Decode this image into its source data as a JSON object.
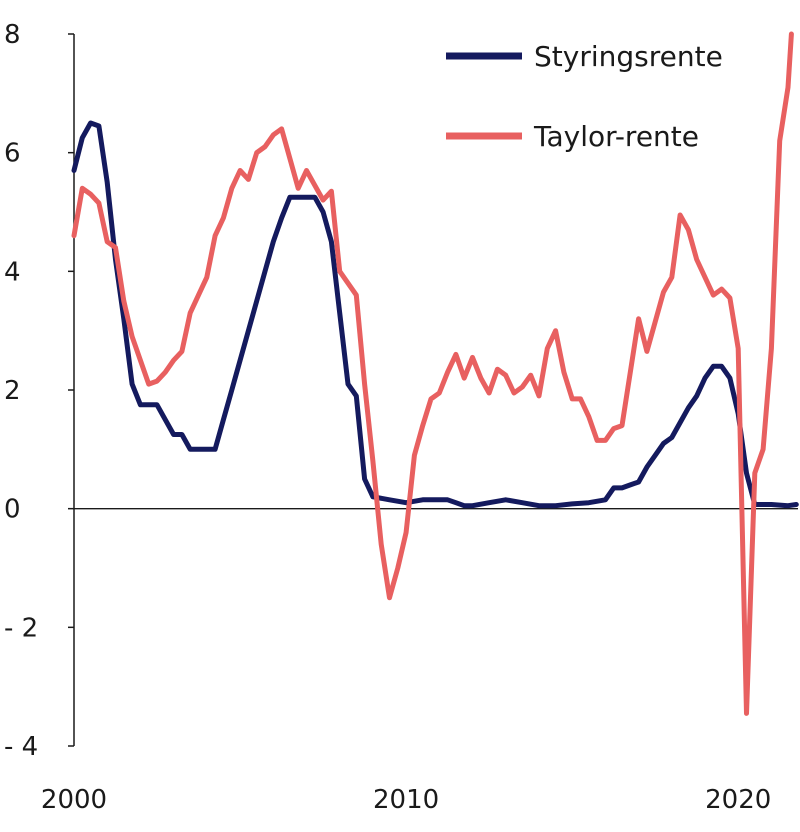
{
  "chart_data": {
    "type": "line",
    "title": "",
    "xlabel": "",
    "ylabel": "",
    "xlim": [
      2000,
      2021.8
    ],
    "ylim": [
      -4,
      8
    ],
    "x_ticks": [
      2000,
      2010,
      2020
    ],
    "x_tick_labels": [
      "2000",
      "2010",
      "2020"
    ],
    "y_ticks": [
      8,
      6,
      4,
      2,
      0,
      -2,
      -4
    ],
    "y_tick_labels": [
      "8",
      "6",
      "4",
      "2",
      "0",
      "- 2",
      "- 4"
    ],
    "grid": false,
    "zero_line": true,
    "legend_position": "top-right",
    "series": [
      {
        "name": "Styringsrente",
        "color": "#141a5e",
        "points": [
          [
            2000.0,
            5.7
          ],
          [
            2000.25,
            6.25
          ],
          [
            2000.5,
            6.5
          ],
          [
            2000.75,
            6.45
          ],
          [
            2001.0,
            5.5
          ],
          [
            2001.25,
            4.2
          ],
          [
            2001.5,
            3.2
          ],
          [
            2001.75,
            2.1
          ],
          [
            2002.0,
            1.75
          ],
          [
            2002.25,
            1.75
          ],
          [
            2002.5,
            1.75
          ],
          [
            2002.75,
            1.5
          ],
          [
            2003.0,
            1.25
          ],
          [
            2003.25,
            1.25
          ],
          [
            2003.5,
            1.0
          ],
          [
            2003.75,
            1.0
          ],
          [
            2004.0,
            1.0
          ],
          [
            2004.25,
            1.0
          ],
          [
            2004.5,
            1.5
          ],
          [
            2004.75,
            2.0
          ],
          [
            2005.0,
            2.5
          ],
          [
            2005.25,
            3.0
          ],
          [
            2005.5,
            3.5
          ],
          [
            2005.75,
            4.0
          ],
          [
            2006.0,
            4.5
          ],
          [
            2006.25,
            4.9
          ],
          [
            2006.5,
            5.25
          ],
          [
            2006.75,
            5.25
          ],
          [
            2007.0,
            5.25
          ],
          [
            2007.25,
            5.25
          ],
          [
            2007.5,
            5.0
          ],
          [
            2007.75,
            4.5
          ],
          [
            2008.0,
            3.3
          ],
          [
            2008.25,
            2.1
          ],
          [
            2008.5,
            1.9
          ],
          [
            2008.75,
            0.5
          ],
          [
            2009.0,
            0.2
          ],
          [
            2009.5,
            0.15
          ],
          [
            2010.0,
            0.1
          ],
          [
            2010.5,
            0.15
          ],
          [
            2011.0,
            0.15
          ],
          [
            2011.25,
            0.15
          ],
          [
            2011.5,
            0.1
          ],
          [
            2011.75,
            0.05
          ],
          [
            2012.0,
            0.05
          ],
          [
            2012.5,
            0.1
          ],
          [
            2013.0,
            0.15
          ],
          [
            2013.5,
            0.1
          ],
          [
            2014.0,
            0.05
          ],
          [
            2014.5,
            0.05
          ],
          [
            2015.0,
            0.08
          ],
          [
            2015.5,
            0.1
          ],
          [
            2016.0,
            0.15
          ],
          [
            2016.25,
            0.35
          ],
          [
            2016.5,
            0.35
          ],
          [
            2016.75,
            0.4
          ],
          [
            2017.0,
            0.45
          ],
          [
            2017.25,
            0.7
          ],
          [
            2017.5,
            0.9
          ],
          [
            2017.75,
            1.1
          ],
          [
            2018.0,
            1.2
          ],
          [
            2018.25,
            1.45
          ],
          [
            2018.5,
            1.7
          ],
          [
            2018.75,
            1.9
          ],
          [
            2019.0,
            2.2
          ],
          [
            2019.25,
            2.4
          ],
          [
            2019.5,
            2.4
          ],
          [
            2019.75,
            2.2
          ],
          [
            2020.0,
            1.6
          ],
          [
            2020.25,
            0.6
          ],
          [
            2020.5,
            0.07
          ],
          [
            2021.0,
            0.07
          ],
          [
            2021.5,
            0.05
          ],
          [
            2021.75,
            0.07
          ]
        ]
      },
      {
        "name": "Taylor-rente",
        "color": "#e86060",
        "points": [
          [
            2000.0,
            4.6
          ],
          [
            2000.25,
            5.4
          ],
          [
            2000.5,
            5.3
          ],
          [
            2000.75,
            5.15
          ],
          [
            2001.0,
            4.5
          ],
          [
            2001.25,
            4.4
          ],
          [
            2001.5,
            3.5
          ],
          [
            2001.75,
            2.9
          ],
          [
            2002.0,
            2.5
          ],
          [
            2002.25,
            2.1
          ],
          [
            2002.5,
            2.15
          ],
          [
            2002.75,
            2.3
          ],
          [
            2003.0,
            2.5
          ],
          [
            2003.25,
            2.65
          ],
          [
            2003.5,
            3.3
          ],
          [
            2003.75,
            3.6
          ],
          [
            2004.0,
            3.9
          ],
          [
            2004.25,
            4.6
          ],
          [
            2004.5,
            4.9
          ],
          [
            2004.75,
            5.4
          ],
          [
            2005.0,
            5.7
          ],
          [
            2005.25,
            5.55
          ],
          [
            2005.5,
            6.0
          ],
          [
            2005.75,
            6.1
          ],
          [
            2006.0,
            6.3
          ],
          [
            2006.25,
            6.4
          ],
          [
            2006.5,
            5.9
          ],
          [
            2006.75,
            5.4
          ],
          [
            2007.0,
            5.7
          ],
          [
            2007.25,
            5.45
          ],
          [
            2007.5,
            5.2
          ],
          [
            2007.75,
            5.35
          ],
          [
            2008.0,
            4.0
          ],
          [
            2008.25,
            3.8
          ],
          [
            2008.5,
            3.6
          ],
          [
            2008.75,
            2.1
          ],
          [
            2009.0,
            0.8
          ],
          [
            2009.25,
            -0.6
          ],
          [
            2009.5,
            -1.5
          ],
          [
            2009.75,
            -1.0
          ],
          [
            2010.0,
            -0.4
          ],
          [
            2010.25,
            0.9
          ],
          [
            2010.5,
            1.4
          ],
          [
            2010.75,
            1.85
          ],
          [
            2011.0,
            1.95
          ],
          [
            2011.25,
            2.3
          ],
          [
            2011.5,
            2.6
          ],
          [
            2011.75,
            2.2
          ],
          [
            2012.0,
            2.55
          ],
          [
            2012.25,
            2.2
          ],
          [
            2012.5,
            1.95
          ],
          [
            2012.75,
            2.35
          ],
          [
            2013.0,
            2.25
          ],
          [
            2013.25,
            1.95
          ],
          [
            2013.5,
            2.05
          ],
          [
            2013.75,
            2.25
          ],
          [
            2014.0,
            1.9
          ],
          [
            2014.25,
            2.7
          ],
          [
            2014.5,
            3.0
          ],
          [
            2014.75,
            2.3
          ],
          [
            2015.0,
            1.85
          ],
          [
            2015.25,
            1.85
          ],
          [
            2015.5,
            1.55
          ],
          [
            2015.75,
            1.15
          ],
          [
            2016.0,
            1.15
          ],
          [
            2016.25,
            1.35
          ],
          [
            2016.5,
            1.4
          ],
          [
            2016.75,
            2.3
          ],
          [
            2017.0,
            3.2
          ],
          [
            2017.25,
            2.65
          ],
          [
            2017.5,
            3.15
          ],
          [
            2017.75,
            3.65
          ],
          [
            2018.0,
            3.9
          ],
          [
            2018.25,
            4.95
          ],
          [
            2018.5,
            4.7
          ],
          [
            2018.75,
            4.2
          ],
          [
            2019.0,
            3.9
          ],
          [
            2019.25,
            3.6
          ],
          [
            2019.5,
            3.7
          ],
          [
            2019.75,
            3.55
          ],
          [
            2020.0,
            2.7
          ],
          [
            2020.25,
            -3.45
          ],
          [
            2020.5,
            0.6
          ],
          [
            2020.75,
            1.0
          ],
          [
            2021.0,
            2.7
          ],
          [
            2021.25,
            6.2
          ],
          [
            2021.5,
            7.1
          ],
          [
            2021.6,
            8.0
          ]
        ]
      }
    ]
  }
}
